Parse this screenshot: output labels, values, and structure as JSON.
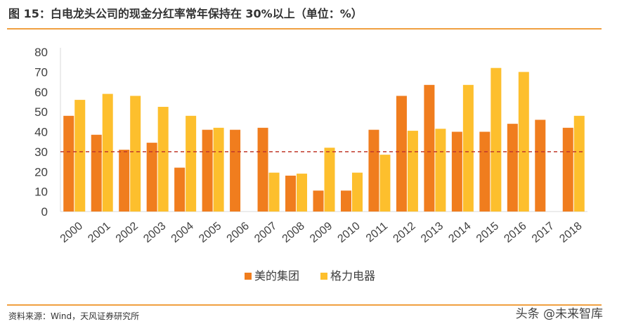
{
  "header": {
    "title": "图 15：白电龙头公司的现金分红率常年保持在 30%以上（单位：%）"
  },
  "footer": {
    "source": "资料来源：Wind，天风证券研究所",
    "watermark": "头条 @未来智库"
  },
  "colors": {
    "accent_rule": "#F0A040",
    "series_1": "#F07D1E",
    "series_2": "#FDBF2D",
    "reference_line": "#C0392B"
  },
  "chart_data": {
    "type": "bar",
    "title": "",
    "xlabel": "",
    "ylabel": "",
    "categories": [
      "2000",
      "2001",
      "2002",
      "2003",
      "2004",
      "2005",
      "2006",
      "2007",
      "2008",
      "2009",
      "2010",
      "2011",
      "2012",
      "2013",
      "2014",
      "2015",
      "2016",
      "2017",
      "2018"
    ],
    "series": [
      {
        "name": "美的集团",
        "values": [
          48,
          38.5,
          31,
          34.5,
          22,
          41,
          41,
          42,
          18,
          10.5,
          10.5,
          41,
          58,
          63.5,
          40,
          40,
          44,
          46,
          42
        ]
      },
      {
        "name": "格力电器",
        "values": [
          56,
          59,
          58,
          52.5,
          48,
          42,
          0,
          19.5,
          19,
          32,
          19.5,
          28.5,
          40.5,
          41.5,
          63.5,
          72,
          70,
          0,
          48
        ]
      }
    ],
    "ylim": [
      0,
      80
    ],
    "yticks": [
      0,
      10,
      20,
      30,
      40,
      50,
      60,
      70,
      80
    ],
    "reference_line": {
      "value": 30,
      "style": "dashed"
    },
    "grid": false,
    "legend": "bottom-center"
  }
}
